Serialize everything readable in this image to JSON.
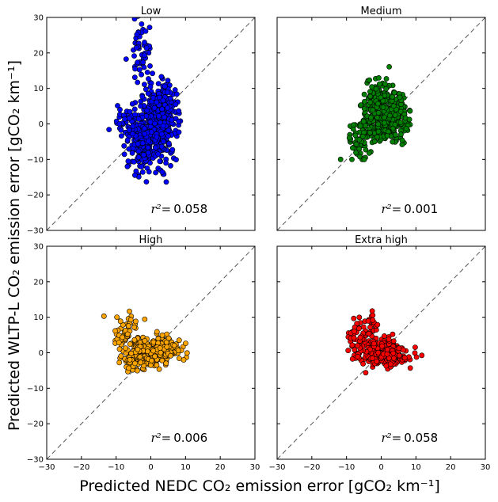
{
  "figure": {
    "ylabel": "Predicted WLTP-L  CO₂ emission error [gCO₂ km⁻¹]",
    "xlabel": "Predicted NEDC CO₂ emission error [gCO₂ km⁻¹]"
  },
  "chart_data": [
    {
      "type": "scatter",
      "title": "Low",
      "annotation_prefix": "r²=",
      "annotation_value": "0.058",
      "color": "#0000ff",
      "xlim": [
        -30,
        30
      ],
      "ylim": [
        -30,
        30
      ],
      "xticks": [
        "−30",
        "−20",
        "−10",
        "0",
        "10",
        "20",
        "30"
      ],
      "yticks": [
        "−30",
        "−20",
        "−10",
        "0",
        "10",
        "20",
        "30"
      ],
      "reference_line": "y = x (dashed)",
      "clusters": [
        {
          "cx": 2.0,
          "cy": 0.0,
          "sx": 2.8,
          "sy": 5.2,
          "n": 420
        },
        {
          "cx": -2.5,
          "cy": -6.0,
          "sx": 2.4,
          "sy": 3.5,
          "n": 140
        },
        {
          "cx": -6.5,
          "cy": 0.0,
          "sx": 2.2,
          "sy": 3.0,
          "n": 45
        },
        {
          "cx": -3.0,
          "cy": 20.0,
          "sx": 1.6,
          "sy": 5.0,
          "n": 55
        },
        {
          "cx": 4.5,
          "cy": 6.0,
          "sx": 1.8,
          "sy": 2.8,
          "n": 70
        }
      ]
    },
    {
      "type": "scatter",
      "title": "Medium",
      "annotation_prefix": "r²=",
      "annotation_value": "0.001",
      "color": "#008000",
      "xlim": [
        -30,
        30
      ],
      "ylim": [
        -30,
        30
      ],
      "xticks": [
        "−30",
        "−20",
        "−10",
        "0",
        "10",
        "20",
        "30"
      ],
      "yticks": [
        "−30",
        "−20",
        "−10",
        "0",
        "10",
        "20",
        "30"
      ],
      "reference_line": "y = x (dashed)",
      "clusters": [
        {
          "cx": 1.5,
          "cy": 1.5,
          "sx": 2.8,
          "sy": 3.5,
          "n": 460
        },
        {
          "cx": -6.0,
          "cy": -4.0,
          "sx": 2.0,
          "sy": 3.0,
          "n": 60
        },
        {
          "cx": -1.0,
          "cy": 8.0,
          "sx": 2.5,
          "sy": 2.5,
          "n": 60
        }
      ]
    },
    {
      "type": "scatter",
      "title": "High",
      "annotation_prefix": "r²=",
      "annotation_value": "0.006",
      "color": "#ffa500",
      "xlim": [
        -30,
        30
      ],
      "ylim": [
        -30,
        30
      ],
      "xticks": [
        "−30",
        "−20",
        "−10",
        "0",
        "10",
        "20",
        "30"
      ],
      "yticks": [
        "−30",
        "−20",
        "−10",
        "0",
        "10",
        "20",
        "30"
      ],
      "reference_line": "y = x (dashed)",
      "clusters": [
        {
          "cx": 1.0,
          "cy": 0.5,
          "sx": 3.2,
          "sy": 1.8,
          "n": 380
        },
        {
          "cx": -7.0,
          "cy": 5.0,
          "sx": 2.0,
          "sy": 3.0,
          "n": 60
        },
        {
          "cx": -4.0,
          "cy": -2.0,
          "sx": 2.5,
          "sy": 1.5,
          "n": 60
        }
      ]
    },
    {
      "type": "scatter",
      "title": "Extra high",
      "annotation_prefix": "r²=",
      "annotation_value": "0.058",
      "color": "#ff0000",
      "xlim": [
        -30,
        30
      ],
      "ylim": [
        -30,
        30
      ],
      "xticks": [
        "−30",
        "−20",
        "−10",
        "0",
        "10",
        "20",
        "30"
      ],
      "yticks": [
        "−30",
        "−20",
        "−10",
        "0",
        "10",
        "20",
        "30"
      ],
      "reference_line": "y = x (dashed)",
      "clusters": [
        {
          "cx": 1.0,
          "cy": 0.0,
          "sx": 3.0,
          "sy": 1.8,
          "n": 380
        },
        {
          "cx": -6.5,
          "cy": 3.5,
          "sx": 1.8,
          "sy": 3.0,
          "n": 55
        },
        {
          "cx": -3.0,
          "cy": 8.0,
          "sx": 1.2,
          "sy": 1.8,
          "n": 20
        }
      ]
    }
  ]
}
